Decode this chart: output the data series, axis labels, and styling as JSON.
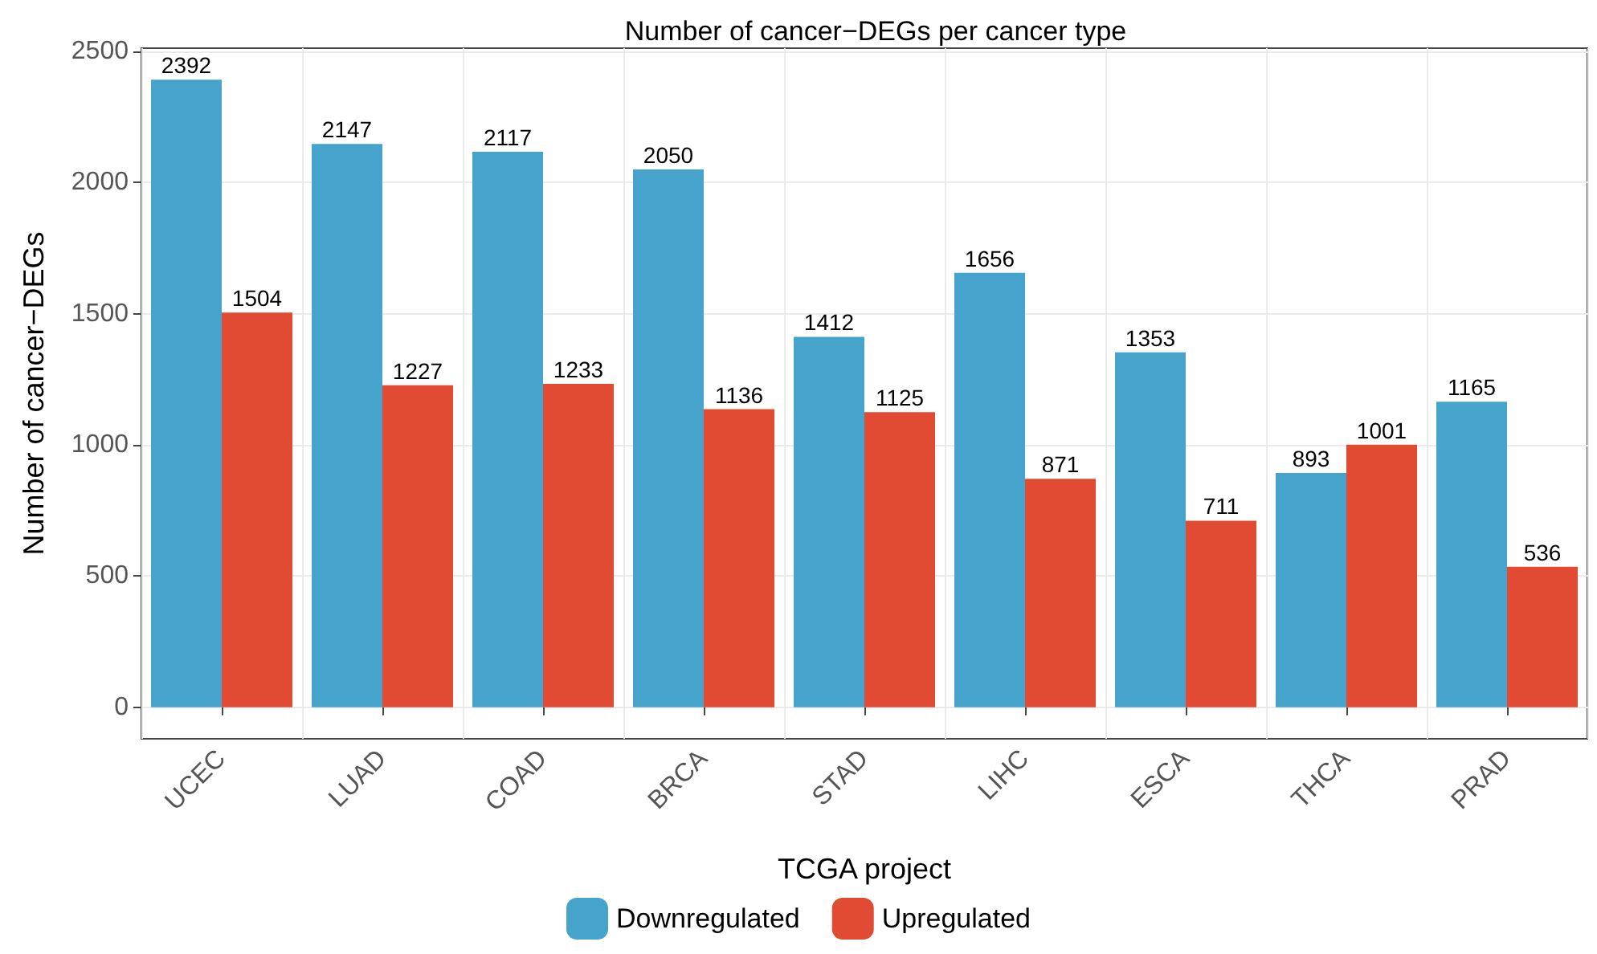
{
  "chart_data": {
    "type": "bar",
    "title": "Number of cancer−DEGs per cancer type",
    "xlabel": "TCGA project",
    "ylabel": "Number of cancer−DEGs",
    "categories": [
      "UCEC",
      "LUAD",
      "COAD",
      "BRCA",
      "STAD",
      "LIHC",
      "ESCA",
      "THCA",
      "PRAD"
    ],
    "series": [
      {
        "name": "Downregulated",
        "color": "#46a4cc",
        "values": [
          2392,
          2147,
          2117,
          2050,
          1412,
          1656,
          1353,
          893,
          1165
        ]
      },
      {
        "name": "Upregulated",
        "color": "#e24b33",
        "values": [
          1504,
          1227,
          1233,
          1136,
          1125,
          871,
          711,
          1001,
          536
        ]
      }
    ],
    "ylim": [
      -120,
      2512
    ],
    "yticks": [
      0,
      500,
      1000,
      1500,
      2000,
      2500
    ],
    "grid": true,
    "legend": "bottom",
    "data_labels": true
  }
}
